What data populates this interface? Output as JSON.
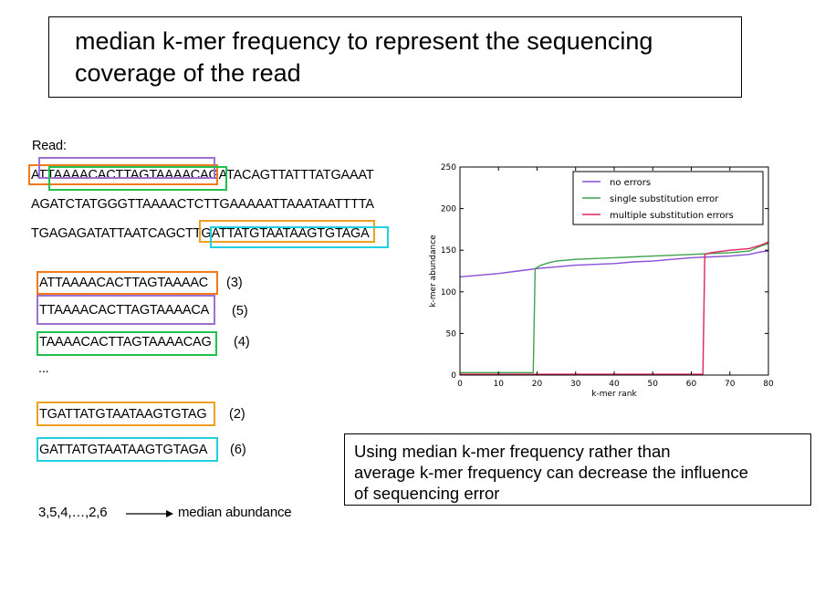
{
  "title": {
    "line1": "median k-mer frequency to represent the sequencing",
    "line2": "coverage of the read"
  },
  "read_label": "Read:",
  "read_lines": [
    "ATTAAAACACTTAGTAAAACAGATACAGTTATTTATGAAAT",
    "AGATCTATGGGTTAAAACTCTTGAAAAATTAAATAATTTTA",
    "TGAGAGATATTAATCAGCTTGATTATGTAATAAGTGTAGA"
  ],
  "kmers": [
    {
      "seq": "ATTAAAACACTTAGTAAAAC",
      "count": "(3)",
      "color": "#f07a1a"
    },
    {
      "seq": "TTAAAACACTTAGTAAAACA",
      "count": "(5)",
      "color": "#a070d0"
    },
    {
      "seq": "TAAAACACTTAGTAAAACAG",
      "count": "(4)",
      "color": "#22c050"
    },
    {
      "seq": "TGATTATGTAATAAGTGTAG",
      "count": "(2)",
      "color": "#f0a020"
    },
    {
      "seq": "GATTATGTAATAAGTGTAGA",
      "count": "(6)",
      "color": "#20d0e0"
    }
  ],
  "ellipsis": "...",
  "median_expr": "3,5,4,…,2,6",
  "median_label": "median abundance",
  "note": {
    "line1": "Using median k-mer frequency rather than",
    "line2": "average k-mer frequency can decrease the influence",
    "line3": "of sequencing error"
  },
  "chart_data": {
    "type": "line",
    "xlabel": "k-mer rank",
    "ylabel": "k-mer abundance",
    "xlim": [
      0,
      80
    ],
    "ylim": [
      0,
      250
    ],
    "xticks": [
      0,
      10,
      20,
      30,
      40,
      50,
      60,
      70,
      80
    ],
    "yticks": [
      0,
      50,
      100,
      150,
      200,
      250
    ],
    "legend_position": "top-right",
    "series": [
      {
        "name": "no errors",
        "color": "#8a4fd8",
        "x": [
          0,
          5,
          10,
          15,
          20,
          25,
          30,
          35,
          40,
          45,
          50,
          55,
          60,
          65,
          70,
          75,
          78,
          80
        ],
        "y": [
          118,
          120,
          122,
          125,
          128,
          130,
          132,
          133,
          134,
          136,
          137,
          139,
          141,
          142,
          143,
          145,
          148,
          149
        ]
      },
      {
        "name": "single substitution error",
        "color": "#3fa34d",
        "x": [
          0,
          19,
          19.5,
          21,
          23,
          25,
          30,
          35,
          40,
          45,
          50,
          55,
          60,
          65,
          70,
          75,
          78,
          80
        ],
        "y": [
          3,
          3,
          128,
          132,
          135,
          137,
          139,
          140,
          141,
          142,
          143,
          144,
          145,
          146,
          147,
          149,
          155,
          158
        ]
      },
      {
        "name": "multiple substitution errors",
        "color": "#e0245e",
        "x": [
          0,
          63,
          63.5,
          65,
          70,
          75,
          78,
          80
        ],
        "y": [
          1,
          1,
          145,
          147,
          150,
          152,
          156,
          160
        ]
      }
    ]
  }
}
